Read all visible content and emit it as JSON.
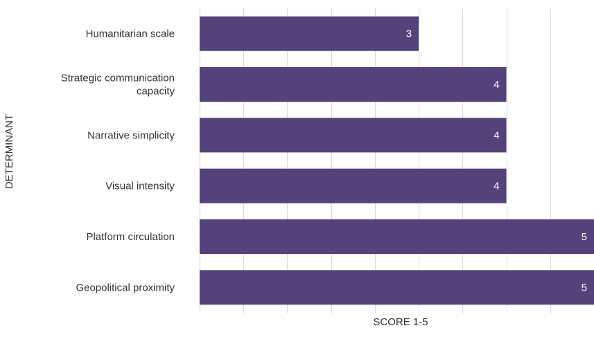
{
  "chart_data": {
    "type": "bar",
    "orientation": "horizontal",
    "categories": [
      [
        "Humanitarian scale"
      ],
      [
        "Strategic communication",
        "capacity"
      ],
      [
        "Narrative simplicity"
      ],
      [
        "Visual intensity"
      ],
      [
        "Platform circulation"
      ],
      [
        "Geopolitical proximity"
      ]
    ],
    "values": [
      3,
      4,
      4,
      4,
      5,
      5
    ],
    "data_labels": [
      "3",
      "4",
      "4",
      "4",
      "5",
      "5"
    ],
    "xlabel": "SCORE 1-5",
    "ylabel": "DETERMINANT",
    "xlim": [
      0.5,
      5
    ],
    "grid": true,
    "bar_color": "#54437a",
    "label_color": "#ffffff"
  }
}
